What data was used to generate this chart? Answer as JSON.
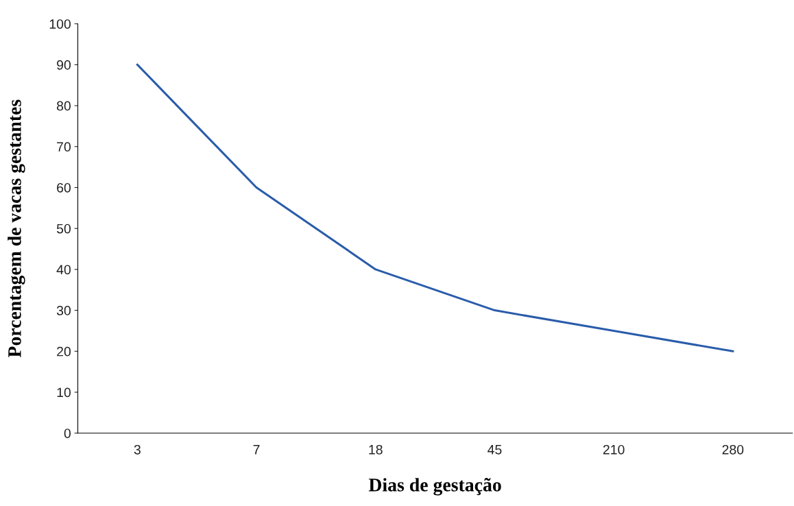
{
  "chart_data": {
    "type": "line",
    "xlabel": "Dias de gestação",
    "ylabel": "Porcentagem de vacas gestantes",
    "categories": [
      "3",
      "7",
      "18",
      "45",
      "210",
      "280"
    ],
    "series": [
      {
        "color": "#2a5caa",
        "values": [
          90,
          60,
          40,
          30,
          25,
          20
        ]
      }
    ],
    "ylim": [
      0,
      100
    ],
    "yticks": [
      0,
      10,
      20,
      30,
      40,
      50,
      60,
      70,
      80,
      90,
      100
    ],
    "grid": false,
    "marker": "none",
    "line_style": "solid"
  }
}
